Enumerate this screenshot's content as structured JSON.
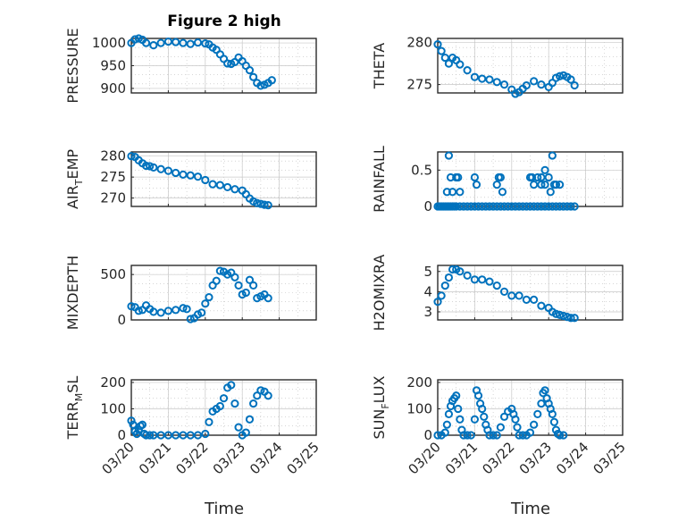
{
  "figure": {
    "title": "Figure 2 high",
    "xlabel": "Time"
  },
  "colors": {
    "marker": "#0072BD",
    "axis": "#262626",
    "grid": "#c8c8c8"
  },
  "chart_data": [
    {
      "type": "scatter",
      "id": "pressure",
      "ylabel": "PRESSURE",
      "ylim": [
        890,
        1010
      ],
      "yticks": [
        900,
        950,
        1000
      ],
      "x": [
        0.0,
        0.1,
        0.2,
        0.3,
        0.4,
        0.6,
        0.8,
        1.0,
        1.2,
        1.4,
        1.6,
        1.8,
        2.0,
        2.1,
        2.2,
        2.3,
        2.4,
        2.5,
        2.6,
        2.7,
        2.8,
        2.9,
        3.0,
        3.1,
        3.2,
        3.3,
        3.4,
        3.5,
        3.6,
        3.7,
        3.8
      ],
      "y": [
        1000,
        1008,
        1010,
        1007,
        1000,
        995,
        1000,
        1003,
        1002,
        1000,
        998,
        1001,
        999,
        997,
        990,
        985,
        975,
        965,
        955,
        954,
        958,
        968,
        960,
        950,
        940,
        925,
        912,
        906,
        908,
        912,
        918
      ]
    },
    {
      "type": "scatter",
      "id": "theta",
      "ylabel": "THETA",
      "ylim": [
        274,
        280.5
      ],
      "yticks": [
        275,
        280
      ],
      "x": [
        0.0,
        0.1,
        0.2,
        0.3,
        0.4,
        0.5,
        0.6,
        0.8,
        1.0,
        1.2,
        1.4,
        1.6,
        1.8,
        2.0,
        2.1,
        2.2,
        2.3,
        2.4,
        2.6,
        2.8,
        3.0,
        3.1,
        3.2,
        3.3,
        3.4,
        3.5,
        3.6,
        3.7
      ],
      "y": [
        279.8,
        279.0,
        278.2,
        277.5,
        278.2,
        277.9,
        277.4,
        276.7,
        275.9,
        275.7,
        275.6,
        275.3,
        275.0,
        274.4,
        273.9,
        274.1,
        274.5,
        274.9,
        275.4,
        275.0,
        274.7,
        275.2,
        275.8,
        276.0,
        276.1,
        275.9,
        275.6,
        274.9
      ]
    },
    {
      "type": "scatter",
      "id": "airtemp",
      "ylabel": "AIR",
      "ylabel_sub": "T",
      "ylabel_rest": "EMP",
      "ylim": [
        268,
        281
      ],
      "yticks": [
        270,
        275,
        280
      ],
      "x": [
        0.0,
        0.1,
        0.2,
        0.3,
        0.4,
        0.5,
        0.6,
        0.8,
        1.0,
        1.2,
        1.4,
        1.6,
        1.8,
        2.0,
        2.2,
        2.4,
        2.6,
        2.8,
        3.0,
        3.1,
        3.2,
        3.3,
        3.4,
        3.5,
        3.6,
        3.7
      ],
      "y": [
        280.0,
        279.8,
        279.0,
        278.3,
        277.7,
        277.6,
        277.3,
        276.9,
        276.5,
        276.0,
        275.6,
        275.4,
        275.1,
        274.3,
        273.3,
        273.1,
        272.6,
        272.1,
        271.8,
        270.9,
        269.9,
        269.2,
        268.8,
        268.6,
        268.4,
        268.3
      ]
    },
    {
      "type": "scatter",
      "id": "rainfall",
      "ylabel": "RAINFALL",
      "ylim": [
        0,
        0.75
      ],
      "yticks": [
        0,
        0.5
      ],
      "x": [
        0.0,
        0.05,
        0.1,
        0.15,
        0.2,
        0.25,
        0.3,
        0.35,
        0.4,
        0.45,
        0.5,
        0.6,
        0.7,
        0.8,
        0.9,
        1.0,
        1.1,
        1.2,
        1.3,
        1.4,
        1.5,
        1.6,
        1.7,
        1.8,
        1.9,
        2.0,
        2.1,
        2.2,
        2.3,
        2.4,
        2.5,
        2.6,
        2.7,
        2.8,
        2.9,
        3.0,
        3.1,
        3.2,
        3.3,
        3.4,
        3.5,
        3.6,
        3.7,
        0.25,
        0.3,
        0.35,
        0.4,
        0.5,
        0.55,
        0.6,
        1.0,
        1.05,
        1.6,
        1.65,
        1.7,
        1.75,
        2.5,
        2.55,
        2.6,
        2.7,
        2.8,
        2.8,
        2.9,
        2.9,
        3.0,
        3.05,
        3.1,
        3.15,
        3.2,
        3.3
      ],
      "y": [
        0,
        0,
        0,
        0,
        0,
        0,
        0,
        0,
        0,
        0,
        0,
        0,
        0,
        0,
        0,
        0,
        0,
        0,
        0,
        0,
        0,
        0,
        0,
        0,
        0,
        0,
        0,
        0,
        0,
        0,
        0,
        0,
        0,
        0,
        0,
        0,
        0,
        0,
        0,
        0,
        0,
        0,
        0,
        0.2,
        0.7,
        0.4,
        0.2,
        0.4,
        0.4,
        0.2,
        0.4,
        0.3,
        0.3,
        0.4,
        0.4,
        0.2,
        0.4,
        0.4,
        0.3,
        0.4,
        0.3,
        0.4,
        0.5,
        0.3,
        0.4,
        0.2,
        0.7,
        0.3,
        0.3,
        0.3
      ]
    },
    {
      "type": "scatter",
      "id": "mixdepth",
      "ylabel": "MIXDEPTH",
      "ylim": [
        0,
        600
      ],
      "yticks": [
        0,
        500
      ],
      "x": [
        0.0,
        0.1,
        0.2,
        0.3,
        0.4,
        0.5,
        0.6,
        0.8,
        1.0,
        1.2,
        1.4,
        1.5,
        1.6,
        1.7,
        1.8,
        1.9,
        2.0,
        2.1,
        2.2,
        2.3,
        2.4,
        2.5,
        2.6,
        2.7,
        2.8,
        2.9,
        3.0,
        3.1,
        3.2,
        3.3,
        3.4,
        3.5,
        3.6,
        3.7
      ],
      "y": [
        150,
        140,
        100,
        110,
        160,
        120,
        90,
        80,
        100,
        110,
        130,
        120,
        10,
        20,
        60,
        80,
        180,
        250,
        380,
        430,
        540,
        530,
        500,
        520,
        470,
        380,
        280,
        300,
        440,
        380,
        240,
        260,
        280,
        240
      ]
    },
    {
      "type": "scatter",
      "id": "h2omixra",
      "ylabel": "H2OMIXRA",
      "ylim": [
        2.6,
        5.3
      ],
      "yticks": [
        3,
        4,
        5
      ],
      "x": [
        0.0,
        0.1,
        0.2,
        0.3,
        0.4,
        0.5,
        0.6,
        0.8,
        1.0,
        1.2,
        1.4,
        1.6,
        1.8,
        2.0,
        2.2,
        2.4,
        2.6,
        2.8,
        3.0,
        3.1,
        3.2,
        3.3,
        3.4,
        3.5,
        3.6,
        3.7
      ],
      "y": [
        3.5,
        3.8,
        4.3,
        4.7,
        5.1,
        5.1,
        5.0,
        4.8,
        4.6,
        4.6,
        4.5,
        4.3,
        4.0,
        3.8,
        3.8,
        3.6,
        3.6,
        3.3,
        3.2,
        3.0,
        2.9,
        2.85,
        2.8,
        2.75,
        2.7,
        2.7
      ]
    },
    {
      "type": "scatter",
      "id": "terrmsl",
      "ylabel": "TERR",
      "ylabel_sub": "M",
      "ylabel_rest": "SL",
      "ylim": [
        0,
        210
      ],
      "yticks": [
        0,
        100,
        200
      ],
      "x": [
        0.0,
        0.05,
        0.1,
        0.15,
        0.2,
        0.25,
        0.3,
        0.35,
        0.4,
        0.5,
        0.6,
        0.8,
        1.0,
        1.2,
        1.4,
        1.6,
        1.8,
        2.0,
        2.1,
        2.2,
        2.3,
        2.4,
        2.5,
        2.6,
        2.7,
        2.8,
        2.9,
        3.0,
        3.1,
        3.2,
        3.3,
        3.4,
        3.5,
        3.6,
        3.7
      ],
      "y": [
        55,
        40,
        15,
        5,
        20,
        35,
        40,
        5,
        0,
        0,
        0,
        0,
        0,
        0,
        0,
        0,
        0,
        5,
        50,
        90,
        100,
        110,
        140,
        180,
        190,
        120,
        30,
        0,
        10,
        60,
        120,
        150,
        170,
        165,
        150
      ]
    },
    {
      "type": "scatter",
      "id": "sunflux",
      "ylabel": "SUN",
      "ylabel_sub": "F",
      "ylabel_rest": "LUX",
      "ylim": [
        0,
        210
      ],
      "yticks": [
        0,
        100,
        200
      ],
      "x": [
        0.0,
        0.1,
        0.2,
        0.25,
        0.3,
        0.35,
        0.4,
        0.45,
        0.5,
        0.55,
        0.6,
        0.65,
        0.7,
        0.8,
        0.9,
        1.0,
        1.05,
        1.1,
        1.15,
        1.2,
        1.25,
        1.3,
        1.35,
        1.4,
        1.5,
        1.6,
        1.7,
        1.8,
        1.9,
        2.0,
        2.05,
        2.1,
        2.15,
        2.2,
        2.3,
        2.4,
        2.5,
        2.6,
        2.7,
        2.8,
        2.85,
        2.9,
        2.95,
        3.0,
        3.05,
        3.1,
        3.15,
        3.2,
        3.25,
        3.3,
        3.4
      ],
      "y": [
        0,
        0,
        10,
        40,
        80,
        110,
        130,
        140,
        150,
        100,
        60,
        20,
        0,
        0,
        0,
        60,
        170,
        150,
        120,
        100,
        70,
        40,
        20,
        0,
        0,
        0,
        30,
        70,
        90,
        100,
        80,
        60,
        30,
        0,
        0,
        0,
        10,
        40,
        80,
        120,
        160,
        170,
        140,
        120,
        100,
        80,
        50,
        20,
        5,
        0,
        0
      ]
    }
  ],
  "xaxis": {
    "ticklabels": [
      "03/20",
      "03/21",
      "03/22",
      "03/23",
      "03/24",
      "03/25"
    ],
    "xlim": [
      0,
      5
    ]
  }
}
